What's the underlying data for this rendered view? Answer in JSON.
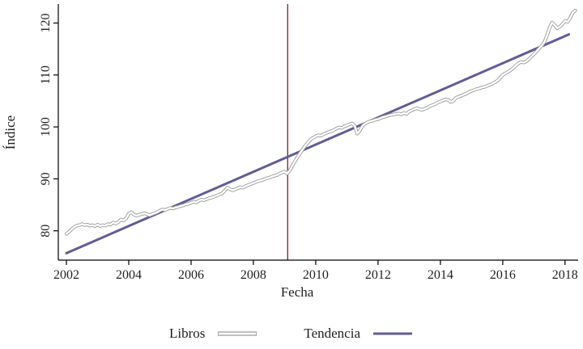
{
  "axes": {
    "y_title": "Índice",
    "x_title": "Fecha"
  },
  "legend": {
    "items": [
      {
        "label": "Libros",
        "swatch": "tube-gray"
      },
      {
        "label": "Tendencia",
        "swatch": "line-purple"
      }
    ]
  },
  "colors": {
    "libros_outline": "#999999",
    "libros_core": "#ffffff",
    "tendencia": "#615c96",
    "event_line": "#8e2b2b",
    "axis": "#000000",
    "text": "#1f1f1f"
  },
  "chart_data": {
    "type": "line",
    "title": "",
    "xlabel": "Fecha",
    "ylabel": "Índice",
    "xlim": [
      2001.74,
      2018.42
    ],
    "ylim": [
      74.36,
      123.65
    ],
    "xticks": [
      2002,
      2004,
      2006,
      2008,
      2010,
      2012,
      2014,
      2016,
      2018
    ],
    "yticks": [
      80,
      90,
      100,
      110,
      120
    ],
    "grid": false,
    "legend_position": "bottom-center",
    "vline": {
      "x": 2009.1,
      "label": ""
    },
    "series": [
      {
        "name": "Libros",
        "style": "outlined-tube",
        "x_start": 2002.0,
        "x_step_years": 0.08333,
        "y": [
          79.4,
          79.8,
          80.3,
          80.7,
          81.0,
          81.1,
          81.3,
          81.1,
          81.2,
          81.0,
          81.1,
          80.9,
          81.2,
          80.9,
          81.1,
          81.0,
          81.3,
          81.2,
          81.6,
          81.4,
          81.7,
          82.2,
          82.0,
          82.4,
          83.3,
          83.6,
          83.1,
          82.9,
          83.1,
          83.2,
          83.4,
          83.2,
          83.0,
          83.2,
          83.4,
          83.6,
          83.9,
          84.1,
          84.0,
          84.2,
          84.4,
          84.3,
          84.5,
          84.6,
          84.8,
          84.9,
          85.1,
          85.2,
          85.4,
          85.6,
          85.5,
          85.8,
          86.0,
          85.9,
          86.1,
          86.3,
          86.4,
          86.6,
          86.8,
          87.0,
          87.2,
          87.8,
          88.3,
          88.0,
          87.8,
          88.0,
          88.2,
          88.4,
          88.3,
          88.6,
          88.8,
          89.0,
          89.2,
          89.4,
          89.6,
          89.7,
          89.9,
          90.1,
          90.2,
          90.4,
          90.6,
          90.7,
          91.0,
          91.2,
          91.4,
          91.0,
          91.6,
          92.5,
          93.4,
          94.2,
          95.0,
          95.7,
          96.4,
          97.0,
          97.6,
          97.9,
          98.2,
          98.4,
          98.3,
          98.6,
          98.8,
          99.0,
          99.2,
          99.4,
          99.7,
          99.9,
          99.8,
          100.1,
          100.3,
          100.5,
          100.7,
          100.2,
          98.7,
          99.3,
          100.2,
          100.6,
          100.9,
          101.1,
          101.2,
          101.4,
          101.5,
          101.7,
          101.9,
          102.0,
          102.2,
          102.3,
          102.4,
          102.5,
          102.6,
          102.4,
          102.7,
          102.5,
          103.0,
          103.2,
          103.4,
          103.6,
          103.4,
          103.3,
          103.5,
          103.7,
          104.0,
          104.2,
          104.4,
          104.7,
          104.9,
          105.1,
          105.3,
          105.2,
          104.8,
          105.0,
          105.6,
          105.8,
          106.0,
          106.2,
          106.4,
          106.7,
          106.9,
          107.1,
          107.3,
          107.4,
          107.6,
          107.7,
          107.9,
          108.1,
          108.3,
          108.6,
          108.9,
          109.4,
          110.0,
          110.3,
          110.6,
          110.9,
          111.3,
          111.8,
          112.2,
          112.5,
          112.4,
          112.6,
          113.0,
          113.5,
          114.0,
          114.5,
          115.1,
          115.6,
          116.3,
          117.5,
          119.0,
          120.1,
          119.6,
          119.0,
          119.3,
          119.8,
          120.4,
          120.2,
          121.0,
          122.0,
          122.4
        ]
      },
      {
        "name": "Tendencia",
        "style": "solid",
        "x": [
          2002.0,
          2018.12
        ],
        "y": [
          75.7,
          117.8
        ]
      }
    ]
  }
}
